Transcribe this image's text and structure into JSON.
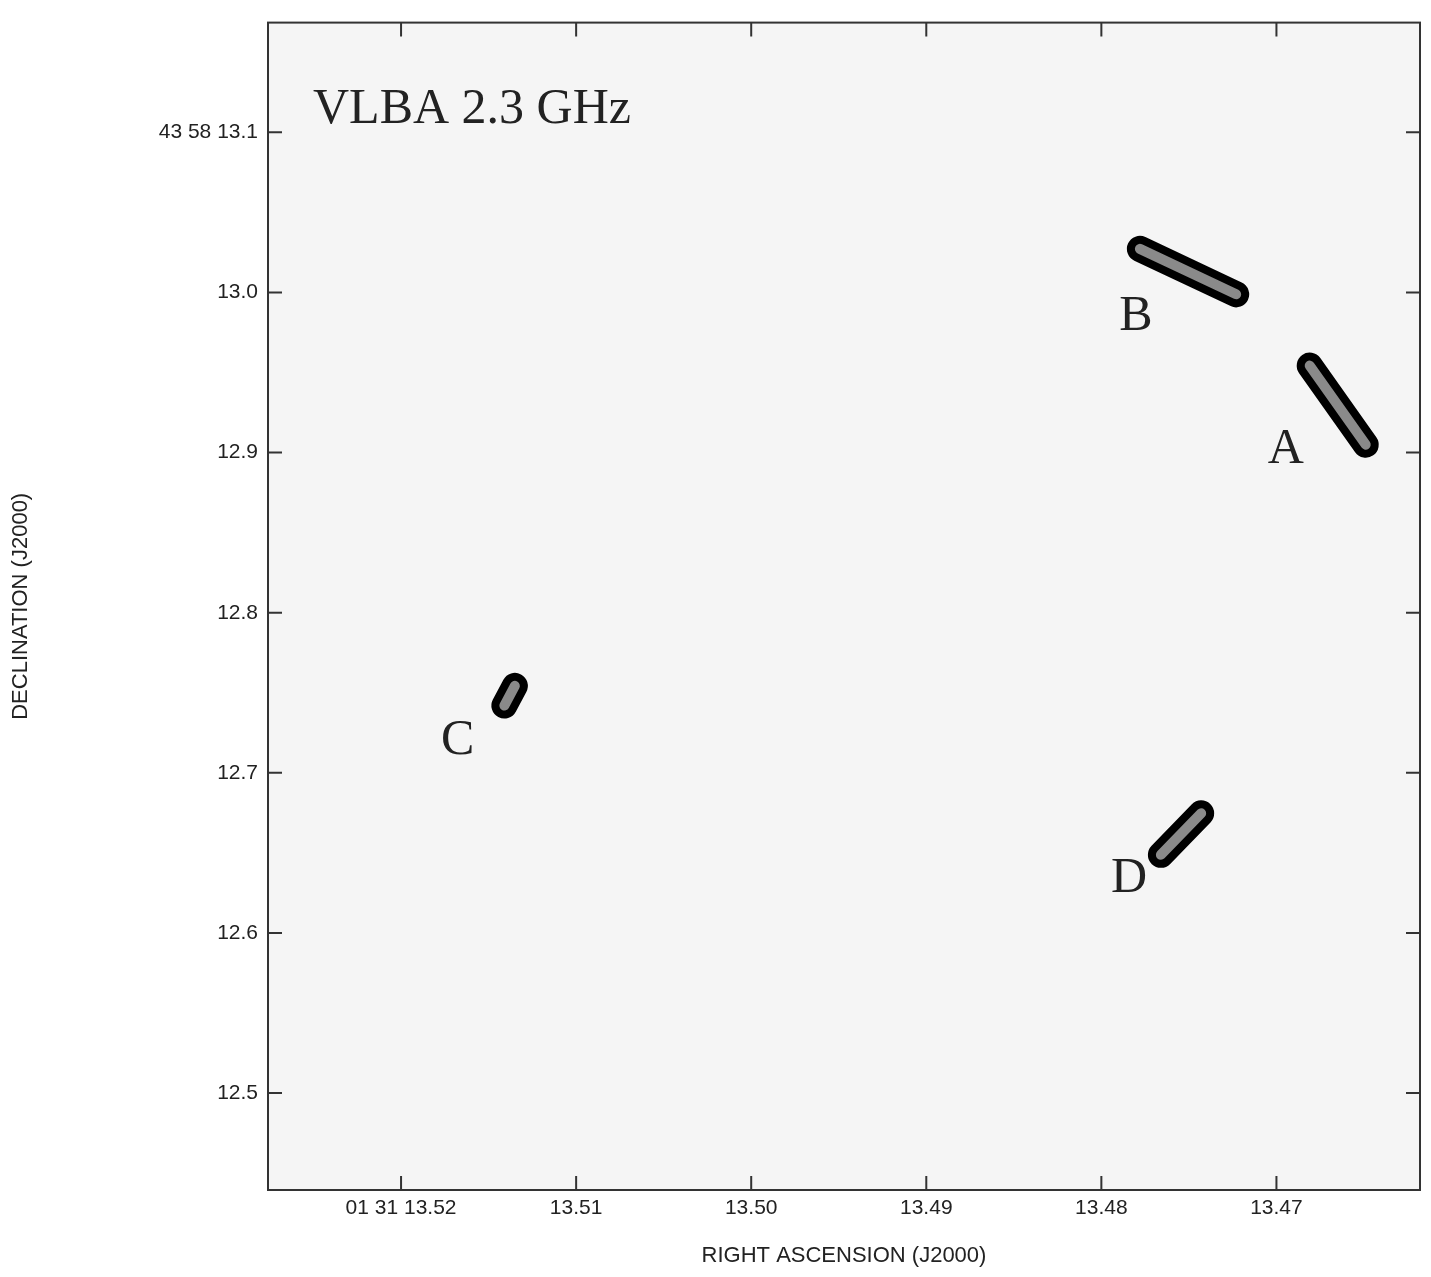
{
  "chart_data": {
    "type": "line",
    "title": "VLBA 2.3 GHz",
    "x_label": "RIGHT ASCENSION (J2000)",
    "y_label": "DECLINATION (J2000)",
    "xlim": [
      13.5276,
      13.4618
    ],
    "ylim": [
      12.4395,
      13.1685
    ],
    "xticks": [
      {
        "value": 13.52,
        "label": "01 31 13.52"
      },
      13.51,
      {
        "value": 13.5,
        "label": "13.50"
      },
      13.49,
      13.48,
      13.47
    ],
    "yticks": [
      12.5,
      12.6,
      12.7,
      12.8,
      12.9,
      {
        "value": 13.0,
        "label": "13.0"
      },
      {
        "value": 13.1,
        "label": "43 58 13.1"
      }
    ],
    "grid": false,
    "series": [
      {
        "name": "A",
        "color": "#000000",
        "x": [
          13.4681,
          13.4649
        ],
        "y": [
          12.9543,
          12.9049
        ]
      },
      {
        "name": "B",
        "color": "#000000",
        "x": [
          13.4778,
          13.4723
        ],
        "y": [
          13.0272,
          12.9988
        ]
      },
      {
        "name": "C",
        "color": "#000000",
        "x": [
          13.5141,
          13.5135
        ],
        "y": [
          12.742,
          12.7543
        ]
      },
      {
        "name": "D",
        "color": "#000000",
        "x": [
          13.4766,
          13.4743
        ],
        "y": [
          12.6488,
          12.6747
        ]
      }
    ]
  }
}
